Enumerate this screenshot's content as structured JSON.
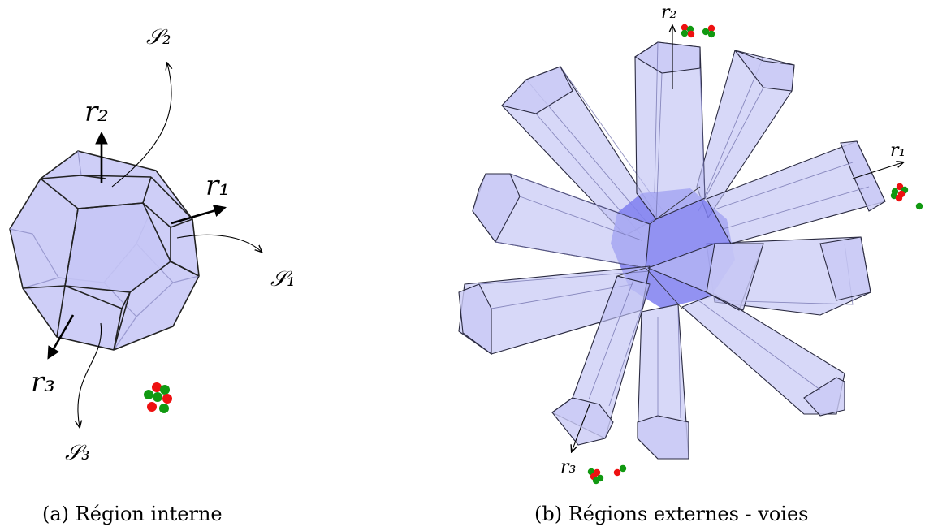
{
  "panel_a": {
    "caption": "(a) Région interne",
    "labels": {
      "r1": "r₁",
      "r2": "r₂",
      "r3": "r₃",
      "s1": "𝒮₁",
      "s2": "𝒮₂",
      "s3": "𝒮₃"
    }
  },
  "panel_b": {
    "caption": "(b) Régions externes - voies",
    "labels": {
      "r1": "r₁",
      "r2": "r₂",
      "r3": "r₃"
    }
  },
  "colors": {
    "solid": "#c5c5f6",
    "core": "#7f7ff0",
    "particle_red": "#ee1111",
    "particle_green": "#119911"
  }
}
